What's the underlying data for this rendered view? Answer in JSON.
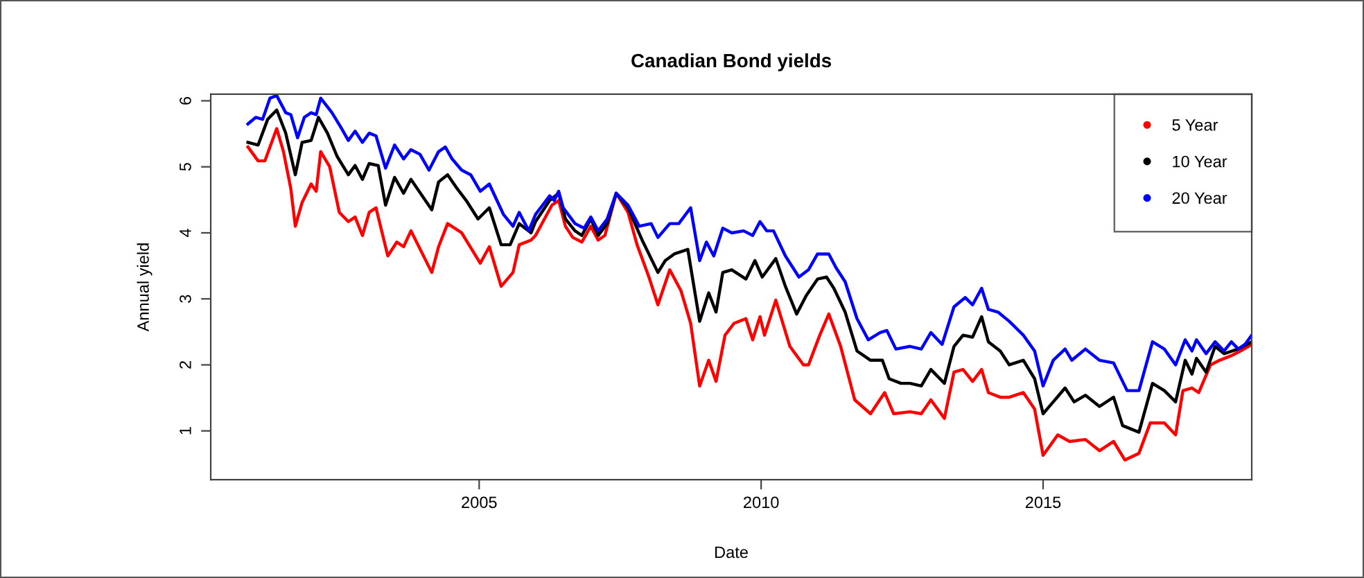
{
  "chart_data": {
    "type": "line",
    "title": "Canadian Bond yields",
    "xlabel": "Date",
    "ylabel": "Annual yield",
    "xlim": [
      2000.24,
      2018.7
    ],
    "xticks": [
      2005,
      2010,
      2015
    ],
    "ylim": [
      0.26,
      6.1
    ],
    "yticks": [
      1,
      2,
      3,
      4,
      5,
      6
    ],
    "grid": false,
    "legend": "top right",
    "series": [
      {
        "name": "5 Year",
        "color": "#ff0000",
        "x": [
          2000.9,
          2001.08,
          2001.2,
          2001.41,
          2001.53,
          2001.66,
          2001.74,
          2001.86,
          2002.02,
          2002.11,
          2002.19,
          2002.35,
          2002.52,
          2002.68,
          2002.8,
          2002.93,
          2003.05,
          2003.17,
          2003.38,
          2003.54,
          2003.66,
          2003.79,
          2004.16,
          2004.28,
          2004.44,
          2004.69,
          2005.02,
          2005.18,
          2005.39,
          2005.6,
          2005.71,
          2005.92,
          2006.0,
          2006.29,
          2006.41,
          2006.53,
          2006.66,
          2006.82,
          2006.98,
          2007.11,
          2007.23,
          2007.43,
          2007.64,
          2007.8,
          2008.01,
          2008.17,
          2008.38,
          2008.58,
          2008.75,
          2008.91,
          2009.07,
          2009.2,
          2009.36,
          2009.52,
          2009.73,
          2009.85,
          2009.98,
          2010.06,
          2010.26,
          2010.51,
          2010.75,
          2010.84,
          2011.04,
          2011.2,
          2011.41,
          2011.66,
          2011.94,
          2012.19,
          2012.35,
          2012.64,
          2012.84,
          2013.01,
          2013.25,
          2013.42,
          2013.58,
          2013.75,
          2013.91,
          2014.03,
          2014.24,
          2014.4,
          2014.65,
          2014.85,
          2015.0,
          2015.26,
          2015.47,
          2015.75,
          2016.0,
          2016.25,
          2016.45,
          2016.7,
          2016.9,
          2017.15,
          2017.35,
          2017.48,
          2017.64,
          2017.76,
          2017.97,
          2018.13,
          2018.34,
          2018.5,
          2018.7
        ],
        "values": [
          5.3,
          5.09,
          5.09,
          5.58,
          5.23,
          4.67,
          4.1,
          4.46,
          4.74,
          4.63,
          5.23,
          5.0,
          4.31,
          4.17,
          4.24,
          3.96,
          4.31,
          4.38,
          3.65,
          3.86,
          3.79,
          4.03,
          3.4,
          3.79,
          4.14,
          4.0,
          3.54,
          3.79,
          3.19,
          3.4,
          3.82,
          3.89,
          3.96,
          4.42,
          4.49,
          4.1,
          3.93,
          3.86,
          4.1,
          3.89,
          3.96,
          4.6,
          4.31,
          3.82,
          3.33,
          2.91,
          3.44,
          3.12,
          2.63,
          1.68,
          2.07,
          1.75,
          2.45,
          2.63,
          2.7,
          2.38,
          2.73,
          2.45,
          2.98,
          2.28,
          2.0,
          2.0,
          2.45,
          2.77,
          2.28,
          1.47,
          1.26,
          1.58,
          1.26,
          1.29,
          1.26,
          1.47,
          1.19,
          1.89,
          1.93,
          1.75,
          1.93,
          1.58,
          1.51,
          1.51,
          1.58,
          1.33,
          0.63,
          0.94,
          0.84,
          0.87,
          0.7,
          0.84,
          0.56,
          0.66,
          1.12,
          1.12,
          0.94,
          1.61,
          1.65,
          1.58,
          2.0,
          2.07,
          2.14,
          2.21,
          2.31
        ]
      },
      {
        "name": "10 Year",
        "color": "#000000",
        "x": [
          2000.9,
          2001.08,
          2001.25,
          2001.41,
          2001.57,
          2001.74,
          2001.86,
          2002.02,
          2002.15,
          2002.31,
          2002.48,
          2002.68,
          2002.8,
          2002.93,
          2003.05,
          2003.21,
          2003.34,
          2003.5,
          2003.66,
          2003.79,
          2004.16,
          2004.28,
          2004.44,
          2004.61,
          2004.77,
          2004.98,
          2005.18,
          2005.39,
          2005.55,
          2005.71,
          2005.92,
          2006.0,
          2006.25,
          2006.41,
          2006.53,
          2006.7,
          2006.82,
          2006.98,
          2007.11,
          2007.27,
          2007.43,
          2007.64,
          2007.89,
          2008.17,
          2008.3,
          2008.46,
          2008.7,
          2008.91,
          2009.07,
          2009.2,
          2009.32,
          2009.48,
          2009.73,
          2009.89,
          2010.02,
          2010.26,
          2010.43,
          2010.63,
          2010.8,
          2011.0,
          2011.16,
          2011.29,
          2011.49,
          2011.7,
          2011.94,
          2012.15,
          2012.27,
          2012.48,
          2012.64,
          2012.84,
          2013.01,
          2013.25,
          2013.42,
          2013.58,
          2013.75,
          2013.91,
          2014.03,
          2014.24,
          2014.4,
          2014.65,
          2014.85,
          2015.0,
          2015.18,
          2015.39,
          2015.55,
          2015.75,
          2016.0,
          2016.25,
          2016.41,
          2016.7,
          2016.94,
          2017.15,
          2017.35,
          2017.52,
          2017.64,
          2017.72,
          2017.89,
          2018.05,
          2018.21,
          2018.46,
          2018.7
        ],
        "values": [
          5.37,
          5.33,
          5.72,
          5.86,
          5.51,
          4.88,
          5.37,
          5.4,
          5.75,
          5.51,
          5.16,
          4.88,
          5.02,
          4.81,
          5.05,
          5.02,
          4.42,
          4.84,
          4.6,
          4.81,
          4.35,
          4.77,
          4.88,
          4.67,
          4.49,
          4.21,
          4.38,
          3.82,
          3.82,
          4.14,
          4.0,
          4.17,
          4.49,
          4.6,
          4.21,
          4.03,
          3.96,
          4.21,
          3.96,
          4.14,
          4.6,
          4.38,
          3.89,
          3.4,
          3.58,
          3.68,
          3.75,
          2.66,
          3.09,
          2.8,
          3.4,
          3.44,
          3.3,
          3.58,
          3.33,
          3.61,
          3.19,
          2.77,
          3.05,
          3.3,
          3.33,
          3.16,
          2.8,
          2.21,
          2.07,
          2.07,
          1.79,
          1.72,
          1.72,
          1.68,
          1.93,
          1.72,
          2.28,
          2.45,
          2.42,
          2.73,
          2.35,
          2.21,
          2.0,
          2.07,
          1.79,
          1.26,
          1.44,
          1.65,
          1.44,
          1.54,
          1.37,
          1.51,
          1.08,
          0.98,
          1.72,
          1.61,
          1.44,
          2.07,
          1.86,
          2.1,
          1.89,
          2.28,
          2.17,
          2.24,
          2.35
        ]
      },
      {
        "name": "20 Year",
        "color": "#0000ff",
        "x": [
          2000.9,
          2001.04,
          2001.16,
          2001.29,
          2001.41,
          2001.57,
          2001.66,
          2001.78,
          2001.9,
          2002.02,
          2002.11,
          2002.19,
          2002.39,
          2002.56,
          2002.68,
          2002.8,
          2002.93,
          2003.05,
          2003.17,
          2003.34,
          2003.5,
          2003.66,
          2003.79,
          2003.95,
          2004.11,
          2004.28,
          2004.4,
          2004.52,
          2004.69,
          2004.85,
          2005.02,
          2005.18,
          2005.43,
          2005.6,
          2005.71,
          2005.88,
          2006.0,
          2006.25,
          2006.33,
          2006.41,
          2006.49,
          2006.7,
          2006.86,
          2006.98,
          2007.11,
          2007.27,
          2007.43,
          2007.64,
          2007.84,
          2008.05,
          2008.17,
          2008.38,
          2008.54,
          2008.75,
          2008.91,
          2009.03,
          2009.16,
          2009.32,
          2009.48,
          2009.69,
          2009.85,
          2009.98,
          2010.1,
          2010.22,
          2010.43,
          2010.67,
          2010.84,
          2011.0,
          2011.2,
          2011.33,
          2011.49,
          2011.7,
          2011.9,
          2012.11,
          2012.23,
          2012.39,
          2012.64,
          2012.84,
          2013.01,
          2013.21,
          2013.42,
          2013.62,
          2013.75,
          2013.91,
          2014.03,
          2014.2,
          2014.4,
          2014.65,
          2014.85,
          2015.0,
          2015.18,
          2015.39,
          2015.51,
          2015.75,
          2016.0,
          2016.25,
          2016.49,
          2016.7,
          2016.94,
          2017.15,
          2017.35,
          2017.52,
          2017.64,
          2017.72,
          2017.89,
          2018.05,
          2018.21,
          2018.34,
          2018.46,
          2018.58,
          2018.7
        ],
        "values": [
          5.65,
          5.75,
          5.72,
          6.04,
          6.08,
          5.82,
          5.79,
          5.44,
          5.75,
          5.82,
          5.79,
          6.04,
          5.82,
          5.58,
          5.4,
          5.54,
          5.37,
          5.51,
          5.47,
          4.98,
          5.33,
          5.12,
          5.26,
          5.19,
          4.95,
          5.23,
          5.3,
          5.12,
          4.95,
          4.88,
          4.63,
          4.74,
          4.28,
          4.1,
          4.31,
          4.03,
          4.28,
          4.56,
          4.49,
          4.63,
          4.38,
          4.14,
          4.07,
          4.24,
          4.03,
          4.21,
          4.6,
          4.42,
          4.1,
          4.14,
          3.93,
          4.14,
          4.14,
          4.38,
          3.58,
          3.86,
          3.65,
          4.07,
          4.0,
          4.03,
          3.96,
          4.17,
          4.03,
          4.03,
          3.65,
          3.33,
          3.44,
          3.68,
          3.68,
          3.47,
          3.26,
          2.7,
          2.38,
          2.49,
          2.52,
          2.24,
          2.28,
          2.24,
          2.49,
          2.31,
          2.88,
          3.02,
          2.91,
          3.16,
          2.84,
          2.8,
          2.66,
          2.45,
          2.21,
          1.68,
          2.07,
          2.24,
          2.07,
          2.24,
          2.07,
          2.03,
          1.61,
          1.61,
          2.35,
          2.24,
          2.0,
          2.38,
          2.21,
          2.38,
          2.17,
          2.35,
          2.21,
          2.35,
          2.24,
          2.31,
          2.45
        ]
      }
    ]
  }
}
